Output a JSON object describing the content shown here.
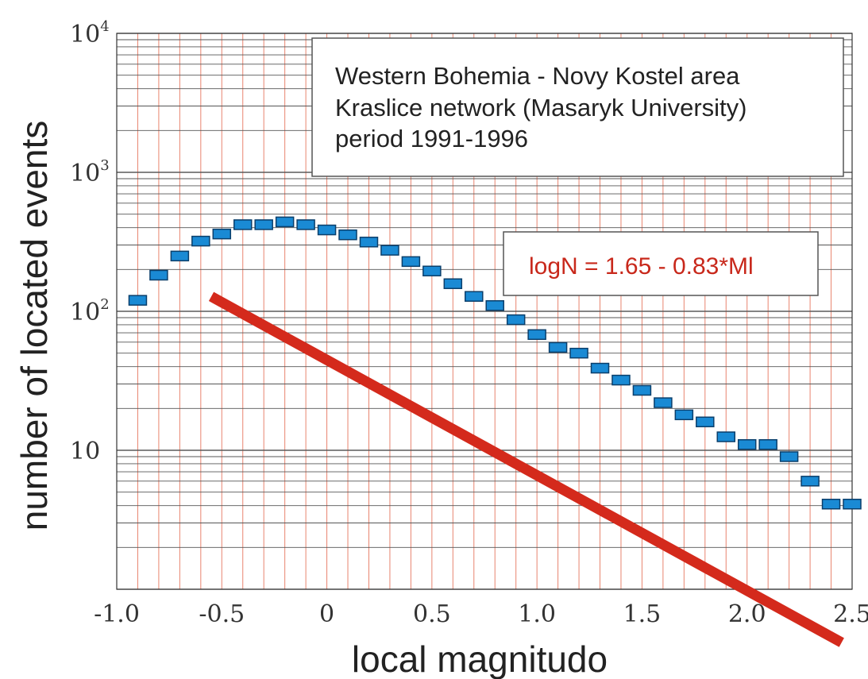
{
  "chart_data": {
    "type": "scatter",
    "xlabel": "local magnitudo",
    "ylabel": "number of located events",
    "xlim": [
      -1.0,
      2.5
    ],
    "ylim": [
      1,
      10000
    ],
    "y_scale": "log",
    "x_ticks": [
      -1.0,
      -0.5,
      0,
      0.5,
      1.0,
      1.5,
      2.0,
      2.5
    ],
    "x_tick_labels": [
      "-1.0",
      "-0.5",
      "0",
      "0.5",
      "1.0",
      "1.5",
      "2.0",
      "2.5"
    ],
    "y_tick_labels": [
      {
        "value": 10,
        "base": "10",
        "exp": ""
      },
      {
        "value": 100,
        "base": "10",
        "exp": "2"
      },
      {
        "value": 1000,
        "base": "10",
        "exp": "3"
      },
      {
        "value": 10000,
        "base": "10",
        "exp": "4"
      }
    ],
    "grid": true,
    "colors": {
      "vertical_grid": "#e8846f",
      "horizontal_grid": "#555555",
      "marker_fill": "#1a8ad4",
      "marker_edge": "#0b3f6b",
      "fit_line": "#d42a1c",
      "equation": "#c8281b"
    },
    "series": [
      {
        "points": [
          [
            -0.9,
            120
          ],
          [
            -0.8,
            182
          ],
          [
            -0.7,
            250
          ],
          [
            -0.6,
            320
          ],
          [
            -0.5,
            360
          ],
          [
            -0.4,
            420
          ],
          [
            -0.3,
            420
          ],
          [
            -0.2,
            440
          ],
          [
            -0.1,
            420
          ],
          [
            0.0,
            385
          ],
          [
            0.1,
            355
          ],
          [
            0.2,
            315
          ],
          [
            0.3,
            275
          ],
          [
            0.4,
            228
          ],
          [
            0.5,
            195
          ],
          [
            0.6,
            158
          ],
          [
            0.7,
            128
          ],
          [
            0.8,
            110
          ],
          [
            0.9,
            87
          ],
          [
            1.0,
            68
          ],
          [
            1.1,
            55
          ],
          [
            1.2,
            50
          ],
          [
            1.3,
            39
          ],
          [
            1.4,
            32
          ],
          [
            1.5,
            27
          ],
          [
            1.6,
            22
          ],
          [
            1.7,
            18
          ],
          [
            1.8,
            16
          ],
          [
            1.9,
            12.5
          ],
          [
            2.0,
            11
          ],
          [
            2.1,
            11
          ],
          [
            2.2,
            9
          ],
          [
            2.3,
            6
          ],
          [
            2.4,
            4.1
          ],
          [
            2.5,
            4.1
          ]
        ]
      }
    ],
    "fit_line": {
      "equation": "logN = 1.65 - 0.83*Ml",
      "intercept": 1.65,
      "slope": -0.83,
      "x_range": [
        -0.55,
        2.45
      ]
    },
    "annotation_box": {
      "lines": [
        "Western Bohemia - Novy Kostel area",
        "Kraslice network (Masaryk University)",
        "period  1991-1996"
      ]
    }
  }
}
